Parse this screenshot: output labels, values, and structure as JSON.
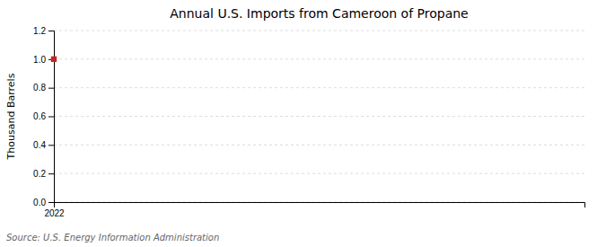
{
  "chart_data": {
    "type": "scatter",
    "title": "Annual U.S. Imports from Cameroon of Propane",
    "ylabel": "Thousand Barrels",
    "source": "Source: U.S. Energy Information Administration",
    "x": [
      2022
    ],
    "values": [
      1.0
    ],
    "color": "#cc2222",
    "marker": "square",
    "xlim": [
      2022,
      2023.5
    ],
    "xticks": [
      2022
    ],
    "ylim": [
      0.0,
      1.2
    ],
    "yticks": [
      {
        "value": 0.0,
        "label": "0.0"
      },
      0.2,
      0.4,
      0.6,
      0.8,
      {
        "value": 1.0,
        "label": "1.0"
      },
      1.2
    ],
    "grid": true
  }
}
